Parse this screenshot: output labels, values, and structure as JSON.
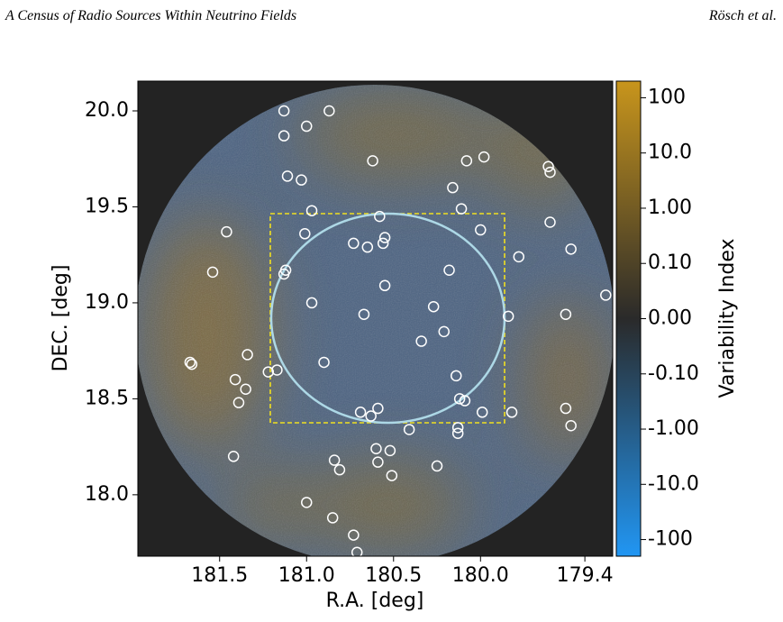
{
  "header": {
    "left": "A Census of Radio Sources Within Neutrino Fields",
    "right": "Rösch et al."
  },
  "chart_data": {
    "type": "scatter",
    "xlabel": "R.A. [deg]",
    "ylabel": "DEC. [deg]",
    "x": [
      181.13,
      180.87,
      181.13,
      181.0,
      180.62,
      179.98,
      180.08,
      181.11,
      181.03,
      180.16,
      179.61,
      179.6,
      180.97,
      180.11,
      180.58,
      181.46,
      181.01,
      180.0,
      179.6,
      180.55,
      180.56,
      180.73,
      180.65,
      179.48,
      179.78,
      181.12,
      181.13,
      180.18,
      181.54,
      180.55,
      179.28,
      180.97,
      180.27,
      180.67,
      179.84,
      179.51,
      180.21,
      180.34,
      181.34,
      181.67,
      181.66,
      180.9,
      181.17,
      181.22,
      181.41,
      180.14,
      181.35,
      181.39,
      180.12,
      180.09,
      180.69,
      180.59,
      180.63,
      179.99,
      179.82,
      179.51,
      179.48,
      180.41,
      180.13,
      180.13,
      180.6,
      180.52,
      180.59,
      180.25,
      181.42,
      180.84,
      180.81,
      180.51,
      181.0,
      180.85,
      180.73,
      180.71
    ],
    "y": [
      20.0,
      20.0,
      19.87,
      19.92,
      19.74,
      19.76,
      19.74,
      19.66,
      19.64,
      19.6,
      19.71,
      19.68,
      19.48,
      19.49,
      19.45,
      19.37,
      19.36,
      19.38,
      19.42,
      19.34,
      19.31,
      19.31,
      19.29,
      19.28,
      19.24,
      19.17,
      19.15,
      19.17,
      19.16,
      19.09,
      19.04,
      19.0,
      18.98,
      18.94,
      18.93,
      18.94,
      18.85,
      18.8,
      18.73,
      18.69,
      18.68,
      18.69,
      18.65,
      18.64,
      18.6,
      18.62,
      18.55,
      18.48,
      18.5,
      18.49,
      18.43,
      18.45,
      18.41,
      18.43,
      18.43,
      18.45,
      18.36,
      18.34,
      18.35,
      18.32,
      18.24,
      18.23,
      18.17,
      18.15,
      18.2,
      18.18,
      18.13,
      18.1,
      17.96,
      17.88,
      17.79,
      17.7
    ],
    "color": "#ffffff",
    "xlim": [
      181.97,
      179.24
    ],
    "ylim": [
      17.68,
      20.155
    ],
    "xticks": [
      181.5,
      {
        "value": 181,
        "label": "181.0"
      },
      180.5,
      {
        "value": 180,
        "label": "180.0"
      },
      179.4
    ],
    "yticks": [
      {
        "value": 18,
        "label": "18.0"
      },
      18.5,
      {
        "value": 19,
        "label": "19.0"
      },
      19.5,
      {
        "value": 20,
        "label": "20.0"
      }
    ],
    "colorbar": {
      "label": "Variability Index",
      "lim": [
        -200,
        200
      ],
      "linthresh": 0.1,
      "colors": [
        "#2196f3",
        "#2a2a2a",
        "#c8951c"
      ],
      "ticks": [
        100,
        {
          "value": 10,
          "label": "10.0"
        },
        {
          "value": 1,
          "label": "1.00"
        },
        {
          "value": 0.1,
          "label": "0.10"
        },
        {
          "value": 0,
          "label": "0.00"
        },
        {
          "value": -0.1,
          "label": "-0.10"
        },
        {
          "value": -1,
          "label": "-1.00"
        },
        {
          "value": -10,
          "label": "-10.0"
        },
        -100
      ]
    }
  }
}
